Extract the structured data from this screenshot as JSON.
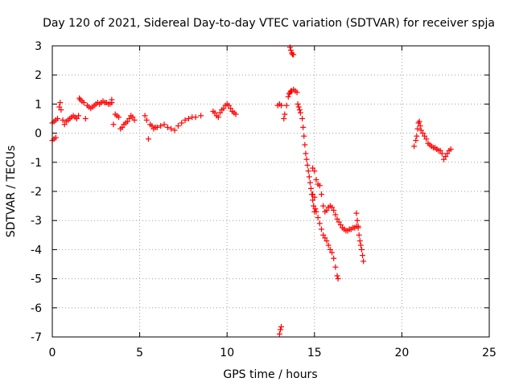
{
  "chart_data": {
    "type": "scatter",
    "title": "Day 120 of 2021, Sidereal Day-to-day VTEC variation (SDTVAR) for receiver spja",
    "xlabel": "GPS time / hours",
    "ylabel": "SDTVAR / TECUs",
    "xlim": [
      0,
      25
    ],
    "ylim": [
      -7,
      3
    ],
    "xticks": [
      "0",
      "5",
      "10",
      "15",
      "20",
      "25"
    ],
    "yticks": [
      "-7",
      "-6",
      "-5",
      "-4",
      "-3",
      "-2",
      "-1",
      "0",
      "1",
      "2",
      "3"
    ],
    "grid": true,
    "marker": "plus",
    "marker_color": "#ff0000",
    "series": [
      {
        "name": "spja",
        "segments": [
          {
            "x": [
              0.0,
              0.1,
              0.2
            ],
            "y": [
              -0.25,
              -0.2,
              -0.15
            ]
          },
          {
            "x": [
              0.0,
              0.1,
              0.2,
              0.3,
              0.4,
              0.45,
              0.5,
              0.6,
              0.7,
              0.8,
              0.9,
              1.0,
              1.1,
              1.2,
              1.3,
              1.4,
              1.5,
              1.55,
              1.6,
              1.7,
              1.8,
              1.9,
              2.0,
              2.1,
              2.2,
              2.3,
              2.4,
              2.5,
              2.6,
              2.7,
              2.8,
              2.9,
              3.0,
              3.1,
              3.2,
              3.3,
              3.4
            ],
            "y": [
              0.35,
              0.4,
              0.45,
              0.5,
              0.9,
              1.05,
              0.8,
              0.45,
              0.3,
              0.4,
              0.45,
              0.5,
              0.55,
              0.6,
              0.55,
              0.5,
              0.6,
              1.2,
              1.15,
              1.1,
              1.05,
              0.5,
              0.95,
              0.9,
              0.85,
              0.9,
              0.95,
              1.0,
              1.05,
              1.0,
              1.05,
              1.1,
              1.05,
              1.05,
              1.0,
              1.0,
              1.05
            ]
          },
          {
            "x": [
              3.4,
              3.5,
              3.6,
              3.7,
              3.8,
              3.9,
              4.0,
              4.1,
              4.2,
              4.3,
              4.4,
              4.5,
              4.6,
              4.7
            ],
            "y": [
              1.15,
              0.3,
              0.65,
              0.6,
              0.55,
              0.15,
              0.2,
              0.3,
              0.35,
              0.4,
              0.5,
              0.6,
              0.55,
              0.45
            ]
          },
          {
            "x": [
              5.3,
              5.4,
              5.5,
              5.6,
              5.7,
              5.8,
              5.9,
              6.0,
              6.2,
              6.4,
              6.6,
              6.8,
              7.0,
              7.2,
              7.4,
              7.6,
              7.8,
              8.0,
              8.2,
              8.5
            ],
            "y": [
              0.6,
              0.45,
              -0.2,
              0.3,
              0.25,
              0.15,
              0.2,
              0.2,
              0.25,
              0.3,
              0.2,
              0.15,
              0.1,
              0.25,
              0.35,
              0.45,
              0.5,
              0.55,
              0.55,
              0.6
            ]
          },
          {
            "x": [
              9.2,
              9.3,
              9.4,
              9.5,
              9.6,
              9.7,
              9.8,
              9.9,
              10.0,
              10.1,
              10.2,
              10.3,
              10.4,
              10.5
            ],
            "y": [
              0.75,
              0.7,
              0.6,
              0.55,
              0.7,
              0.8,
              0.85,
              0.95,
              1.0,
              0.95,
              0.85,
              0.75,
              0.7,
              0.65
            ]
          },
          {
            "x": [
              12.9,
              13.0,
              13.1,
              13.0,
              13.05,
              13.1
            ],
            "y": [
              0.95,
              1.0,
              0.95,
              -6.9,
              -6.75,
              -6.65
            ]
          },
          {
            "x": [
              13.25,
              13.3,
              13.4,
              13.5,
              13.55,
              13.6,
              13.65,
              13.7,
              13.8,
              13.9,
              14.0,
              14.05,
              14.1,
              14.15,
              14.2,
              14.3,
              14.35,
              14.4,
              14.45,
              14.5,
              14.55,
              14.6,
              14.65,
              14.7,
              14.75,
              14.8,
              14.85,
              14.9,
              14.95,
              15.0
            ],
            "y": [
              0.5,
              0.65,
              0.95,
              1.25,
              1.35,
              1.4,
              1.45,
              1.45,
              1.5,
              1.45,
              1.4,
              1.0,
              0.9,
              0.8,
              0.7,
              0.5,
              0.2,
              -0.1,
              -0.4,
              -0.7,
              -0.9,
              -1.1,
              -1.3,
              -1.5,
              -1.7,
              -1.9,
              -2.1,
              -2.3,
              -2.5,
              -2.7
            ]
          },
          {
            "x": [
              13.6,
              13.65,
              13.7,
              13.75,
              13.8
            ],
            "y": [
              2.95,
              2.85,
              2.75,
              2.7,
              2.7
            ]
          },
          {
            "x": [
              14.9,
              15.0,
              15.05,
              15.1,
              15.2,
              15.3,
              15.4,
              15.5,
              15.6,
              15.7,
              15.8,
              15.9,
              16.0,
              16.1,
              16.2,
              16.3,
              16.35
            ],
            "y": [
              -2.1,
              -2.2,
              -2.6,
              -2.7,
              -2.9,
              -3.1,
              -3.3,
              -3.5,
              -3.6,
              -3.7,
              -3.85,
              -4.0,
              -4.1,
              -4.3,
              -4.6,
              -4.9,
              -5.0
            ]
          },
          {
            "x": [
              14.9,
              15.0,
              15.1,
              15.2,
              15.3,
              15.4,
              15.5,
              15.6,
              15.7,
              15.8,
              15.9,
              16.0,
              16.1,
              16.2,
              16.3,
              16.4,
              16.5,
              16.6,
              16.7,
              16.8,
              16.9,
              17.0,
              17.1,
              17.2,
              17.3,
              17.4,
              17.5
            ],
            "y": [
              -1.2,
              -1.3,
              -1.6,
              -1.75,
              -1.8,
              -2.1,
              -2.5,
              -2.7,
              -2.65,
              -2.55,
              -2.5,
              -2.55,
              -2.65,
              -2.8,
              -2.95,
              -3.05,
              -3.15,
              -3.25,
              -3.3,
              -3.35,
              -3.35,
              -3.3,
              -3.3,
              -3.25,
              -3.25,
              -3.2,
              -3.2
            ]
          },
          {
            "x": [
              17.4,
              17.45,
              17.5,
              17.55,
              17.6,
              17.65,
              17.7,
              17.75,
              17.8
            ],
            "y": [
              -2.75,
              -3.0,
              -3.25,
              -3.5,
              -3.7,
              -3.85,
              -4.0,
              -4.2,
              -4.4
            ]
          },
          {
            "x": [
              20.7,
              20.8,
              20.85,
              20.9,
              20.95,
              21.0,
              21.05,
              21.1,
              21.2,
              21.3,
              21.4,
              21.5,
              21.6,
              21.7,
              21.8,
              21.9,
              22.0,
              22.1,
              22.2,
              22.3,
              22.4,
              22.5,
              22.6,
              22.7,
              22.8
            ],
            "y": [
              -0.45,
              -0.25,
              -0.1,
              0.15,
              0.35,
              0.4,
              0.25,
              0.1,
              0.0,
              -0.1,
              -0.2,
              -0.35,
              -0.4,
              -0.45,
              -0.5,
              -0.5,
              -0.55,
              -0.6,
              -0.6,
              -0.7,
              -0.9,
              -0.8,
              -0.7,
              -0.6,
              -0.55
            ]
          }
        ]
      }
    ]
  }
}
